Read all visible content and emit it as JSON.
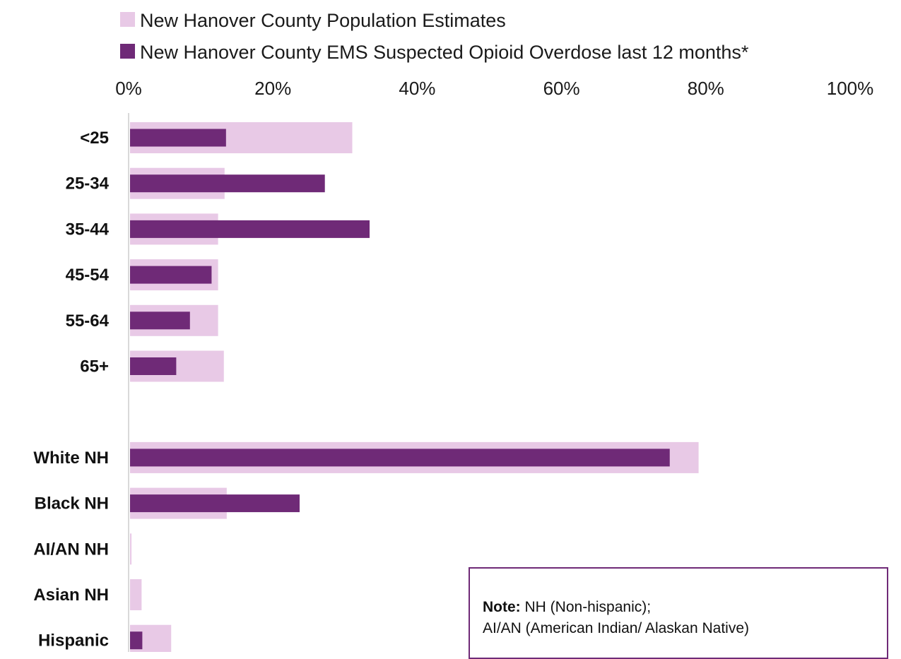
{
  "chart_data": {
    "type": "bar",
    "orientation": "horizontal",
    "categories": [
      "<25",
      "25-34",
      "35-44",
      "45-54",
      "55-64",
      "65+",
      "",
      "White NH",
      "Black NH",
      "AI/AN NH",
      "Asian NH",
      "Hispanic"
    ],
    "series": [
      {
        "name": "New Hanover County Population Estimates",
        "color": "#e8c9e6",
        "values": [
          31,
          13.3,
          12.4,
          12.4,
          12.4,
          13.2,
          null,
          79,
          13.6,
          0.4,
          1.8,
          5.9
        ]
      },
      {
        "name": "New Hanover County EMS Suspected Opioid Overdose last 12 months*",
        "color": "#6f2a77",
        "values": [
          13.5,
          27.2,
          33.4,
          11.5,
          8.5,
          6.6,
          null,
          75,
          23.7,
          0,
          0,
          1.9
        ]
      }
    ],
    "xaxis": {
      "ticks": [
        "0%",
        "20%",
        "40%",
        "60%",
        "80%",
        "100%"
      ],
      "position": "top"
    },
    "xlim": [
      0,
      100
    ],
    "grid": false,
    "legend": "top-left"
  },
  "note": {
    "label": "Note:",
    "line1": " NH (Non-hispanic);",
    "line2": "AI/AN (American Indian/ Alaskan Native)"
  }
}
